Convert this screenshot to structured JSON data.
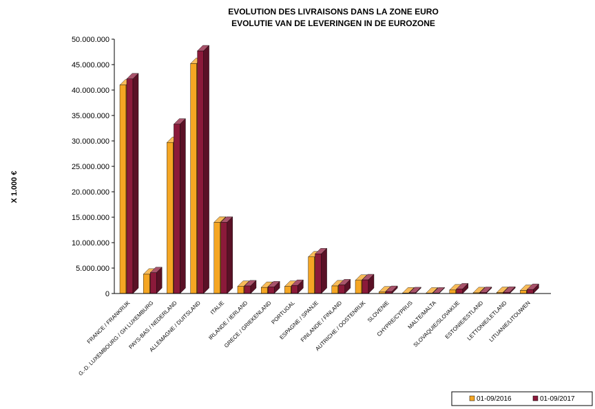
{
  "chart_data": {
    "type": "bar",
    "title": "EVOLUTION DES LIVRAISONS DANS LA ZONE EURO",
    "subtitle": "EVOLUTIE VAN DE LEVERINGEN IN  DE EUROZONE",
    "ylabel": "X 1.000 €",
    "ylim": [
      0,
      50000000
    ],
    "yticks": [
      "0",
      "5.000.000",
      "10.000.000",
      "15.000.000",
      "20.000.000",
      "25.000.000",
      "30.000.000",
      "35.000.000",
      "40.000.000",
      "45.000.000",
      "50.000.000"
    ],
    "categories": [
      "FRANCE / FRANKRIJK",
      "G.-D. LUXEMBOURG / GH LUXEMBURG",
      "PAYS-BAS / NEDERLAND",
      "ALLEMAGNE / DUITSLAND",
      "ITALIE",
      "IRLANDE / IERLAND",
      "GRECE / GRIEKENLAND",
      "PORTUGAL",
      "ESPAGNE / SPANJE",
      "FINLANDE / FINLAND",
      "AUTRICHE / OOSTENRIJK",
      "SLOVENIE",
      "CHYPRE/CYPRUS",
      "MALTE/MALTA",
      "SLOVAQUIE/SLOVAKIJE",
      "ESTONIE/ESTLAND",
      "LETTONIE/LETLAND",
      "LITUANIE/LITOUWEN"
    ],
    "series": [
      {
        "name": "01-09/2016",
        "color": "#F5A623",
        "values": [
          41000000,
          3800000,
          29700000,
          45200000,
          14000000,
          1400000,
          1200000,
          1400000,
          7200000,
          1500000,
          2600000,
          300000,
          100000,
          80000,
          700000,
          150000,
          200000,
          600000
        ]
      },
      {
        "name": "01-09/2017",
        "color": "#8B1A3A",
        "values": [
          42200000,
          4100000,
          33300000,
          47700000,
          14000000,
          1500000,
          1300000,
          1600000,
          7800000,
          1700000,
          2700000,
          400000,
          150000,
          100000,
          900000,
          200000,
          250000,
          800000
        ]
      }
    ],
    "legend": "bottom-right",
    "grid": false
  }
}
